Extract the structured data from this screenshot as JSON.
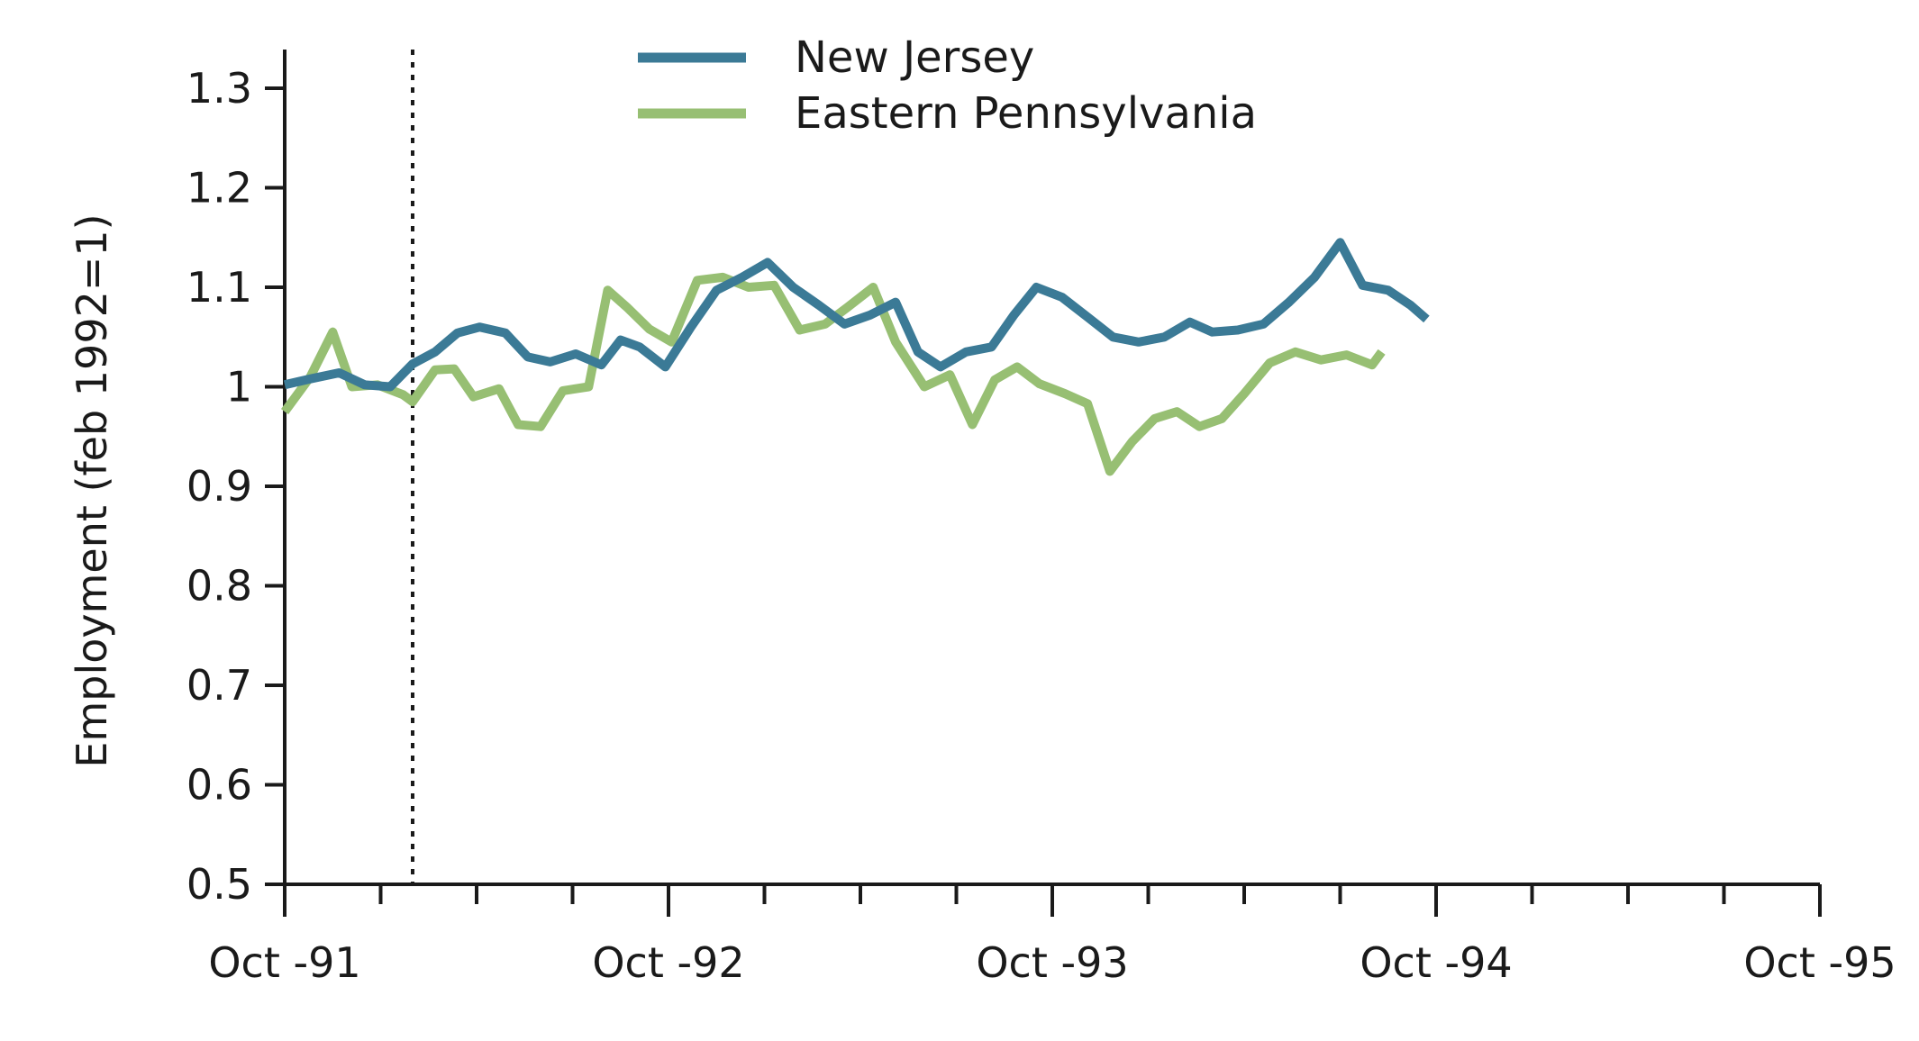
{
  "chart_data": {
    "type": "line",
    "ylabel": "Employment (feb 1992=1)",
    "xlabel": "",
    "ylim": [
      0.5,
      1.3
    ],
    "yticks": [
      "0.5",
      "0.6",
      "0.7",
      "0.8",
      "0.9",
      "1",
      "1.1",
      "1.2",
      "1.3"
    ],
    "xticks": [
      "Oct -91",
      "Oct -92",
      "Oct -93",
      "Oct -94",
      "Oct -95"
    ],
    "xlim_months": [
      0,
      48
    ],
    "vertical_reference_month": 4,
    "grid": false,
    "legend_position": "top-center",
    "colors": {
      "new_jersey": "#3b7a96",
      "eastern_pennsylvania": "#97bf73",
      "axis": "#1a1a1a"
    },
    "series": [
      {
        "name": "New Jersey",
        "color": "#3b7a96",
        "points": [
          [
            0,
            1.002
          ],
          [
            0.8,
            1.008
          ],
          [
            1.7,
            1.014
          ],
          [
            2.5,
            1.002
          ],
          [
            3.3,
            1.0
          ],
          [
            4.0,
            1.023
          ],
          [
            4.7,
            1.035
          ],
          [
            5.4,
            1.054
          ],
          [
            6.1,
            1.06
          ],
          [
            6.9,
            1.054
          ],
          [
            7.6,
            1.03
          ],
          [
            8.3,
            1.025
          ],
          [
            9.1,
            1.033
          ],
          [
            9.9,
            1.022
          ],
          [
            10.5,
            1.047
          ],
          [
            11.1,
            1.04
          ],
          [
            11.9,
            1.02
          ],
          [
            12.7,
            1.06
          ],
          [
            13.5,
            1.097
          ],
          [
            14.3,
            1.11
          ],
          [
            15.1,
            1.125
          ],
          [
            15.9,
            1.1
          ],
          [
            16.7,
            1.082
          ],
          [
            17.5,
            1.063
          ],
          [
            18.3,
            1.072
          ],
          [
            19.1,
            1.085
          ],
          [
            19.8,
            1.035
          ],
          [
            20.5,
            1.02
          ],
          [
            21.3,
            1.035
          ],
          [
            22.1,
            1.04
          ],
          [
            22.8,
            1.072
          ],
          [
            23.5,
            1.1
          ],
          [
            24.3,
            1.09
          ],
          [
            25.1,
            1.07
          ],
          [
            25.9,
            1.05
          ],
          [
            26.7,
            1.045
          ],
          [
            27.5,
            1.05
          ],
          [
            28.3,
            1.065
          ],
          [
            29.0,
            1.055
          ],
          [
            29.8,
            1.057
          ],
          [
            30.6,
            1.063
          ],
          [
            31.4,
            1.085
          ],
          [
            32.2,
            1.11
          ],
          [
            33.0,
            1.145
          ],
          [
            33.7,
            1.102
          ],
          [
            34.5,
            1.097
          ],
          [
            35.2,
            1.082
          ],
          [
            35.7,
            1.068
          ]
        ]
      },
      {
        "name": "Eastern Pennsylvania",
        "color": "#97bf73",
        "points": [
          [
            0,
            0.975
          ],
          [
            0.8,
            1.01
          ],
          [
            1.5,
            1.055
          ],
          [
            2.1,
            1.0
          ],
          [
            2.9,
            1.002
          ],
          [
            3.7,
            0.992
          ],
          [
            4.0,
            0.985
          ],
          [
            4.7,
            1.017
          ],
          [
            5.3,
            1.018
          ],
          [
            5.9,
            0.99
          ],
          [
            6.7,
            0.998
          ],
          [
            7.3,
            0.962
          ],
          [
            8.0,
            0.96
          ],
          [
            8.7,
            0.996
          ],
          [
            9.5,
            1.0
          ],
          [
            10.1,
            1.097
          ],
          [
            10.7,
            1.08
          ],
          [
            11.4,
            1.058
          ],
          [
            12.1,
            1.045
          ],
          [
            12.9,
            1.107
          ],
          [
            13.7,
            1.11
          ],
          [
            14.5,
            1.1
          ],
          [
            15.3,
            1.102
          ],
          [
            16.1,
            1.057
          ],
          [
            16.9,
            1.063
          ],
          [
            17.6,
            1.08
          ],
          [
            18.4,
            1.1
          ],
          [
            19.1,
            1.045
          ],
          [
            20.0,
            1.0
          ],
          [
            20.8,
            1.012
          ],
          [
            21.5,
            0.962
          ],
          [
            22.2,
            1.007
          ],
          [
            22.9,
            1.02
          ],
          [
            23.6,
            1.003
          ],
          [
            24.4,
            0.993
          ],
          [
            25.1,
            0.983
          ],
          [
            25.8,
            0.915
          ],
          [
            26.5,
            0.945
          ],
          [
            27.2,
            0.968
          ],
          [
            27.9,
            0.975
          ],
          [
            28.6,
            0.96
          ],
          [
            29.3,
            0.968
          ],
          [
            30.0,
            0.993
          ],
          [
            30.8,
            1.024
          ],
          [
            31.6,
            1.035
          ],
          [
            32.4,
            1.027
          ],
          [
            33.2,
            1.032
          ],
          [
            34.0,
            1.022
          ],
          [
            34.3,
            1.035
          ]
        ]
      }
    ]
  }
}
